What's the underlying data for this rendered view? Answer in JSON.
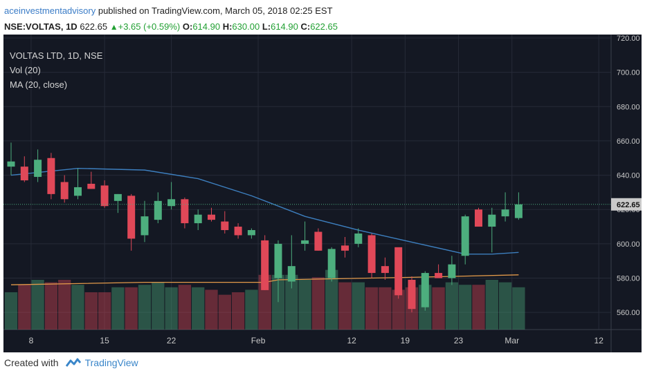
{
  "header": {
    "author": "aceinvestmentadvisory",
    "published": " published on TradingView.com, March 05, 2018 02:25 EST",
    "symbol": "NSE:VOLTAS, 1D",
    "price": "622.65",
    "change": "+3.65 (+0.59%)",
    "open_label": "O:",
    "open": "614.90",
    "high_label": "H:",
    "high": "630.00",
    "low_label": "L:",
    "low": "614.90",
    "close_label": "C:",
    "close": "622.65"
  },
  "legend": {
    "title": "VOLTAS LTD, 1D, NSE",
    "vol": "Vol (20)",
    "ma": "MA (20, close)"
  },
  "footer": {
    "created_with": "Created with",
    "brand": "TradingView"
  },
  "colors": {
    "background": "#141823",
    "grid": "#262b38",
    "up": "#4dae7e",
    "down": "#e04858",
    "ma": "#3d7fbf",
    "vol_ma": "#e39a4a",
    "axis_text": "#c9c9c9",
    "price_tag": "#c9c9c9"
  },
  "chart_data": {
    "type": "candlestick",
    "ylim": [
      550,
      722
    ],
    "y_ticks": [
      560,
      580,
      600,
      620,
      640,
      660,
      680,
      700,
      720
    ],
    "y_tick_labels": [
      "560.00",
      "580.00",
      "600.00",
      "620.00",
      "640.00",
      "660.00",
      "680.00",
      "700.00",
      "720.00"
    ],
    "x_tick_labels": [
      "8",
      "15",
      "22",
      "Feb",
      "12",
      "19",
      "23",
      "Mar",
      "12"
    ],
    "current_price_label": "622.65",
    "candles": [
      {
        "o": 645,
        "h": 659,
        "l": 640,
        "c": 648
      },
      {
        "o": 645,
        "h": 651,
        "l": 636,
        "c": 637
      },
      {
        "o": 639,
        "h": 655,
        "l": 636,
        "c": 649
      },
      {
        "o": 650,
        "h": 653,
        "l": 626,
        "c": 629
      },
      {
        "o": 636,
        "h": 640,
        "l": 624,
        "c": 626
      },
      {
        "o": 628,
        "h": 644,
        "l": 626,
        "c": 633
      },
      {
        "o": 635,
        "h": 642,
        "l": 632,
        "c": 632
      },
      {
        "o": 634,
        "h": 637,
        "l": 621,
        "c": 622
      },
      {
        "o": 625,
        "h": 629,
        "l": 618,
        "c": 629
      },
      {
        "o": 628,
        "h": 629,
        "l": 596,
        "c": 603
      },
      {
        "o": 605,
        "h": 625,
        "l": 601,
        "c": 616
      },
      {
        "o": 614,
        "h": 630,
        "l": 612,
        "c": 625
      },
      {
        "o": 622,
        "h": 636,
        "l": 620,
        "c": 626
      },
      {
        "o": 626,
        "h": 627,
        "l": 609,
        "c": 612
      },
      {
        "o": 612,
        "h": 620,
        "l": 608,
        "c": 617
      },
      {
        "o": 617,
        "h": 621,
        "l": 613,
        "c": 614
      },
      {
        "o": 613,
        "h": 619,
        "l": 606,
        "c": 608
      },
      {
        "o": 610,
        "h": 612,
        "l": 603,
        "c": 605
      },
      {
        "o": 605,
        "h": 609,
        "l": 603,
        "c": 608
      },
      {
        "o": 602,
        "h": 605,
        "l": 573,
        "c": 573
      },
      {
        "o": 580,
        "h": 602,
        "l": 566,
        "c": 600
      },
      {
        "o": 578,
        "h": 605,
        "l": 574,
        "c": 587
      },
      {
        "o": 600,
        "h": 613,
        "l": 596,
        "c": 602
      },
      {
        "o": 607,
        "h": 609,
        "l": 596,
        "c": 596
      },
      {
        "o": 580,
        "h": 598,
        "l": 578,
        "c": 597
      },
      {
        "o": 599,
        "h": 604,
        "l": 592,
        "c": 596
      },
      {
        "o": 600,
        "h": 609,
        "l": 598,
        "c": 606
      },
      {
        "o": 605,
        "h": 606,
        "l": 580,
        "c": 583
      },
      {
        "o": 587,
        "h": 592,
        "l": 579,
        "c": 583
      },
      {
        "o": 598,
        "h": 597,
        "l": 568,
        "c": 570
      },
      {
        "o": 579,
        "h": 581,
        "l": 560,
        "c": 562
      },
      {
        "o": 563,
        "h": 584,
        "l": 561,
        "c": 583
      },
      {
        "o": 583,
        "h": 588,
        "l": 580,
        "c": 580
      },
      {
        "o": 580,
        "h": 593,
        "l": 576,
        "c": 588
      },
      {
        "o": 593,
        "h": 617,
        "l": 588,
        "c": 616
      },
      {
        "o": 620,
        "h": 621,
        "l": 611,
        "c": 610
      },
      {
        "o": 610,
        "h": 621,
        "l": 595,
        "c": 617
      },
      {
        "o": 616,
        "h": 630,
        "l": 613,
        "c": 620
      },
      {
        "o": 615,
        "h": 630,
        "l": 614,
        "c": 623
      }
    ],
    "ma20": [
      {
        "i": 0,
        "v": 640
      },
      {
        "i": 5,
        "v": 644
      },
      {
        "i": 10,
        "v": 643
      },
      {
        "i": 14,
        "v": 638
      },
      {
        "i": 18,
        "v": 628
      },
      {
        "i": 22,
        "v": 616
      },
      {
        "i": 26,
        "v": 608
      },
      {
        "i": 30,
        "v": 601
      },
      {
        "i": 34,
        "v": 594
      },
      {
        "i": 36,
        "v": 594
      },
      {
        "i": 38,
        "v": 595
      }
    ],
    "volumes": [
      15,
      18,
      20,
      19,
      20,
      18,
      15,
      15,
      17,
      17,
      18,
      19,
      17,
      18,
      17,
      16,
      14,
      15,
      16,
      22,
      22,
      22,
      20,
      21,
      24,
      19,
      19,
      17,
      17,
      16,
      17,
      18,
      17,
      19,
      18,
      18,
      20,
      19,
      17
    ],
    "vol_ma": [
      {
        "i": 0,
        "v": 18
      },
      {
        "i": 10,
        "v": 19
      },
      {
        "i": 19,
        "v": 19
      },
      {
        "i": 20,
        "v": 20
      },
      {
        "i": 30,
        "v": 21
      },
      {
        "i": 38,
        "v": 22
      }
    ],
    "x_label_indices": [
      1.5,
      7,
      12,
      18.5,
      25.5,
      29.5,
      33.5,
      37.5,
      44
    ]
  }
}
